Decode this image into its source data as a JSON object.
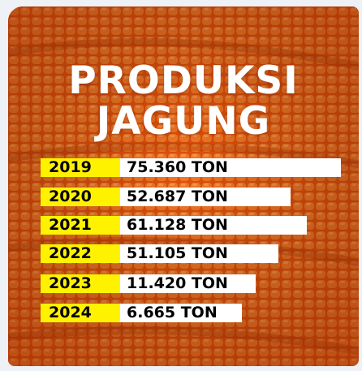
{
  "title_lines": [
    "PRODUKSI",
    "JAGUNG"
  ],
  "rows": [
    {
      "year": "2019",
      "amount": "75.360 TON"
    },
    {
      "year": "2020",
      "amount": "52.687 TON"
    },
    {
      "year": "2021",
      "amount": "61.128 TON"
    },
    {
      "year": "2022",
      "amount": "51.105 TON"
    },
    {
      "year": "2023",
      "amount": "11.420 TON"
    },
    {
      "year": "2024",
      "amount": "6.665 TON"
    }
  ]
}
